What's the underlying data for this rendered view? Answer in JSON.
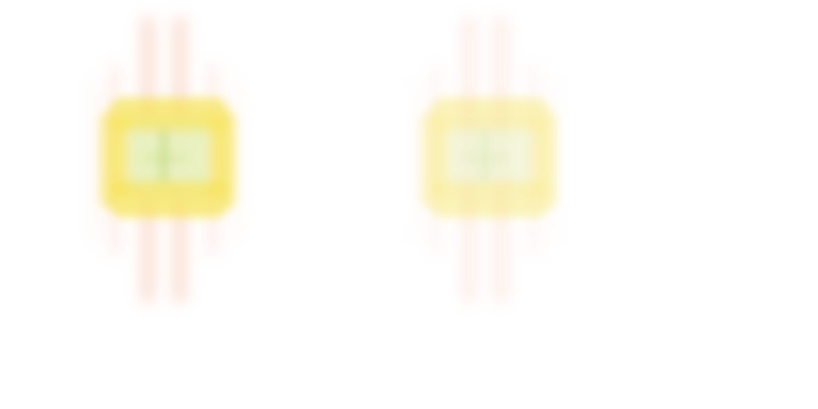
{
  "background_color": "#ffffff",
  "sprites": [
    {
      "icon": "blurred-flare-sprite",
      "intensity": 1.0,
      "colors": {
        "outer_rays": "#f4a58a",
        "core_ring": "#f6e45c",
        "inner_glow": "#e8f2c8",
        "center_mark": "#bfd97a"
      }
    },
    {
      "icon": "blurred-flare-sprite",
      "intensity": 0.55,
      "colors": {
        "outer_rays": "#f4a58a",
        "core_ring": "#f6e45c",
        "inner_glow": "#e8f2c8",
        "center_mark": "#bfd97a"
      }
    }
  ]
}
